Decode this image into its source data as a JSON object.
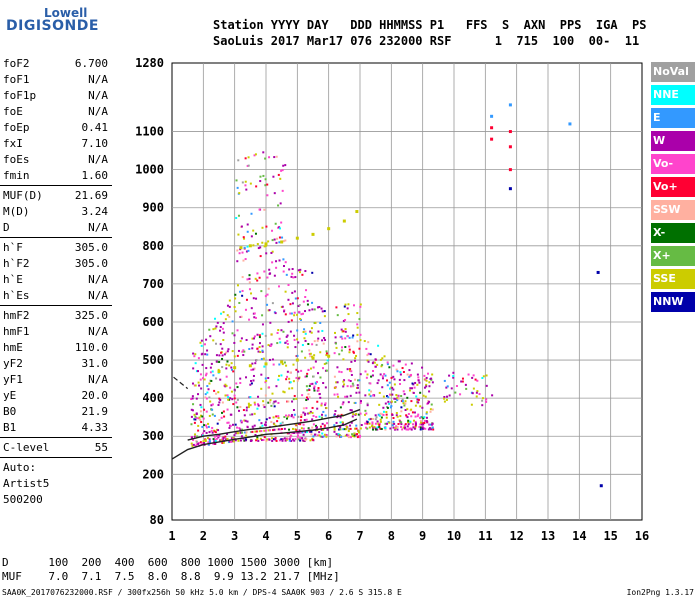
{
  "logo": {
    "top": "Lowell",
    "bottom": "DIGISONDE"
  },
  "header": {
    "line1": "Station YYYY DAY   DDD HHMMSS P1   FFS  S  AXN  PPS  IGA  PS",
    "line2": "SaoLuis 2017 Mar17 076 232000 RSF      1  715  100  00-  11"
  },
  "params": {
    "group1": [
      {
        "label": "foF2",
        "value": "6.700"
      },
      {
        "label": "foF1",
        "value": "N/A"
      },
      {
        "label": "foF1p",
        "value": "N/A"
      },
      {
        "label": "foE",
        "value": "N/A"
      },
      {
        "label": "foEp",
        "value": "0.41"
      },
      {
        "label": "fxI",
        "value": "7.10"
      },
      {
        "label": "foEs",
        "value": "N/A"
      },
      {
        "label": "fmin",
        "value": "1.60"
      }
    ],
    "group2": [
      {
        "label": "MUF(D)",
        "value": "21.69"
      },
      {
        "label": "M(D)",
        "value": "3.24"
      },
      {
        "label": "D",
        "value": "N/A"
      }
    ],
    "group3": [
      {
        "label": "h`F",
        "value": "305.0"
      },
      {
        "label": "h`F2",
        "value": "305.0"
      },
      {
        "label": "h`E",
        "value": "N/A"
      },
      {
        "label": "h`Es",
        "value": "N/A"
      }
    ],
    "group4": [
      {
        "label": "hmF2",
        "value": "325.0"
      },
      {
        "label": "hmF1",
        "value": "N/A"
      },
      {
        "label": "hmE",
        "value": "110.0"
      },
      {
        "label": "yF2",
        "value": "31.0"
      },
      {
        "label": "yF1",
        "value": "N/A"
      },
      {
        "label": "yE",
        "value": "20.0"
      },
      {
        "label": "B0",
        "value": "21.9"
      },
      {
        "label": "B1",
        "value": "4.33"
      }
    ],
    "group5": [
      {
        "label": "C-level",
        "value": "55"
      }
    ],
    "auto": [
      "Auto:",
      "Artist5",
      "500200"
    ]
  },
  "legend": [
    {
      "label": "NoVal",
      "color": "#a0a0a0"
    },
    {
      "label": "NNE",
      "color": "#00ffff"
    },
    {
      "label": "E",
      "color": "#3399ff"
    },
    {
      "label": "W",
      "color": "#aa00aa"
    },
    {
      "label": "Vo-",
      "color": "#ff44cc"
    },
    {
      "label": "Vo+",
      "color": "#ff0033"
    },
    {
      "label": "SSW",
      "color": "#ffb0a0"
    },
    {
      "label": "X-",
      "color": "#007000"
    },
    {
      "label": "X+",
      "color": "#66bb44"
    },
    {
      "label": "SSE",
      "color": "#cccc00"
    },
    {
      "label": "NNW",
      "color": "#0000aa"
    }
  ],
  "mufrow": {
    "d_line": "D      100  200  400  600  800 1000 1500 3000 [km]",
    "muf_line": "MUF    7.0  7.1  7.5  8.0  8.8  9.9 13.2 21.7 [MHz]"
  },
  "footer": {
    "file": "SAA0K_2017076232000.RSF / 300fx256h 50 kHz 5.0 km / DPS-4 SAA0K 903 / 2.6 S 315.8 E",
    "version": "Ion2Png 1.3.17"
  },
  "chart_data": {
    "type": "scatter",
    "xlim": [
      1,
      16
    ],
    "ylim": [
      80,
      1280
    ],
    "x_ticks": [
      1,
      2,
      3,
      4,
      5,
      6,
      7,
      8,
      9,
      10,
      11,
      12,
      13,
      14,
      15,
      16
    ],
    "y_ticks": [
      80,
      200,
      300,
      400,
      500,
      600,
      700,
      800,
      900,
      1000,
      1100,
      1280
    ],
    "grid": true,
    "series": [
      {
        "name": "trace-F2",
        "color": "#222222",
        "x": [
          1.0,
          1.5,
          2.0,
          2.5,
          3.0,
          3.5,
          4.0,
          4.5,
          5.0,
          5.5,
          6.0,
          6.5,
          6.9
        ],
        "y": [
          240,
          265,
          278,
          285,
          292,
          298,
          305,
          308,
          312,
          316,
          322,
          330,
          345
        ]
      },
      {
        "name": "trace-F2-upper",
        "color": "#222222",
        "x": [
          1.5,
          2.0,
          2.5,
          3.0,
          3.5,
          4.0,
          4.5,
          5.0,
          5.5,
          6.0,
          6.5,
          7.0
        ],
        "y": [
          290,
          300,
          305,
          312,
          318,
          322,
          328,
          334,
          340,
          348,
          355,
          370
        ]
      },
      {
        "name": "SSE-band-800",
        "color": "#cccc00",
        "x": [
          3.2,
          3.5,
          4.0,
          4.5,
          5.0,
          5.5,
          6.0,
          6.5,
          6.9
        ],
        "y": [
          795,
          800,
          805,
          810,
          820,
          830,
          845,
          865,
          890
        ]
      },
      {
        "name": "SSE-band-480",
        "color": "#cccc00",
        "x": [
          2.5,
          3.0,
          3.5,
          4.0,
          4.5,
          5.0,
          5.5,
          6.0
        ],
        "y": [
          470,
          480,
          485,
          490,
          495,
          500,
          505,
          510
        ]
      },
      {
        "name": "sparse-high",
        "color": "#ff0033",
        "x": [
          11.2,
          11.8,
          11.8,
          11.2,
          11.8
        ],
        "y": [
          1110,
          1100,
          1060,
          1080,
          1000
        ]
      },
      {
        "name": "sparse-blue",
        "color": "#3399ff",
        "x": [
          11.2,
          11.8,
          13.7
        ],
        "y": [
          1140,
          1170,
          1120
        ]
      },
      {
        "name": "sparse-nnw",
        "color": "#0000aa",
        "x": [
          11.8,
          14.6,
          14.7
        ],
        "y": [
          950,
          730,
          170
        ]
      }
    ]
  }
}
